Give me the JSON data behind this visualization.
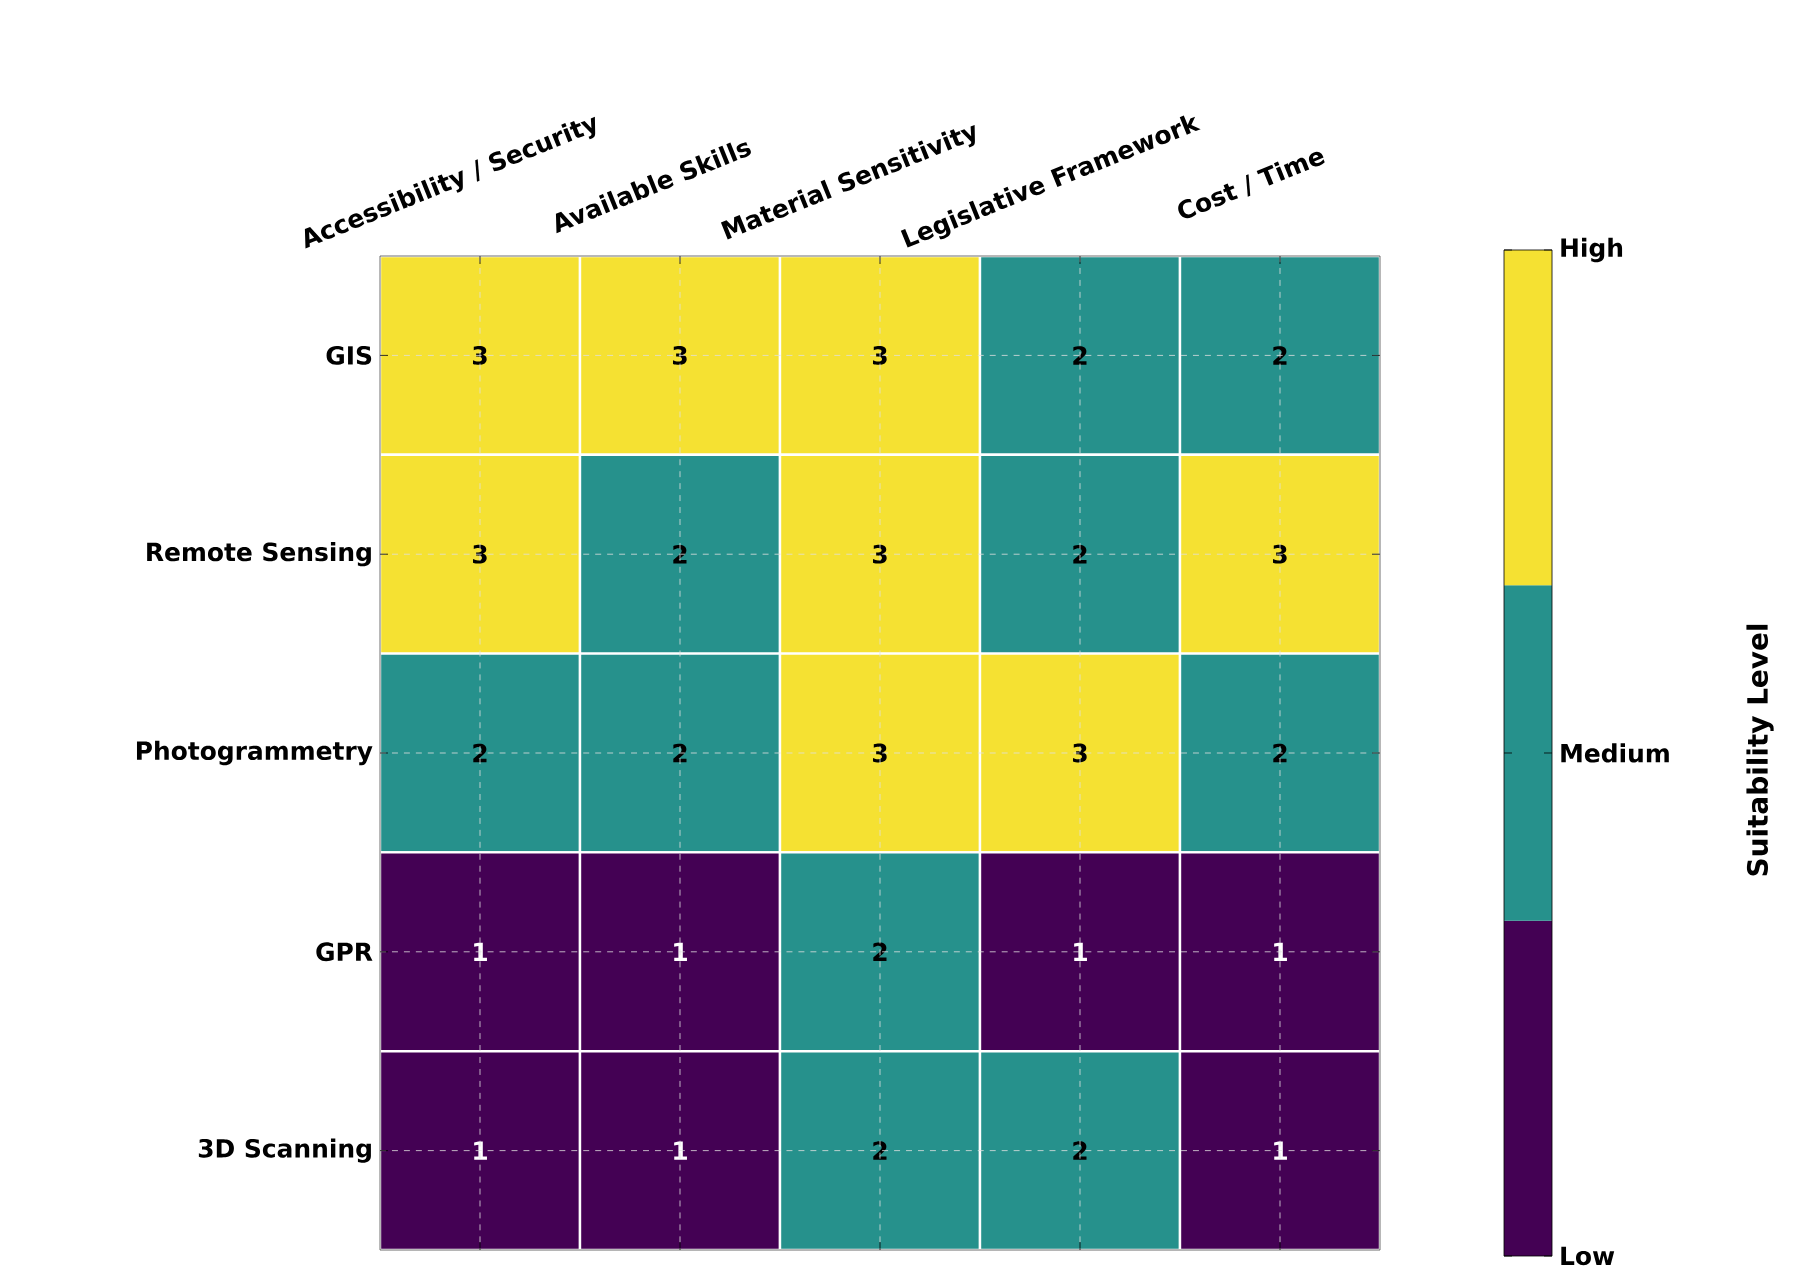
{
  "chart_data": {
    "type": "heatmap",
    "categories": [
      "Accessibility / Security",
      "Available Skills",
      "Material Sensitivity",
      "Legislative Framework",
      "Cost / Time"
    ],
    "y_categories": [
      "GIS",
      "Remote Sensing",
      "Photogrammetry",
      "GPR",
      "3D Scanning"
    ],
    "cells": [
      [
        3,
        3,
        3,
        2,
        2
      ],
      [
        3,
        2,
        3,
        2,
        3
      ],
      [
        2,
        2,
        3,
        3,
        2
      ],
      [
        1,
        1,
        2,
        1,
        1
      ],
      [
        1,
        1,
        2,
        2,
        1
      ]
    ],
    "clim": [
      1,
      3
    ],
    "cticks": [
      {
        "value": 1,
        "label": "Low"
      },
      {
        "value": 2,
        "label": "Medium"
      },
      {
        "value": 3,
        "label": "High"
      }
    ],
    "clabel": "Suitability Level",
    "data_labels": true,
    "grid": true
  }
}
